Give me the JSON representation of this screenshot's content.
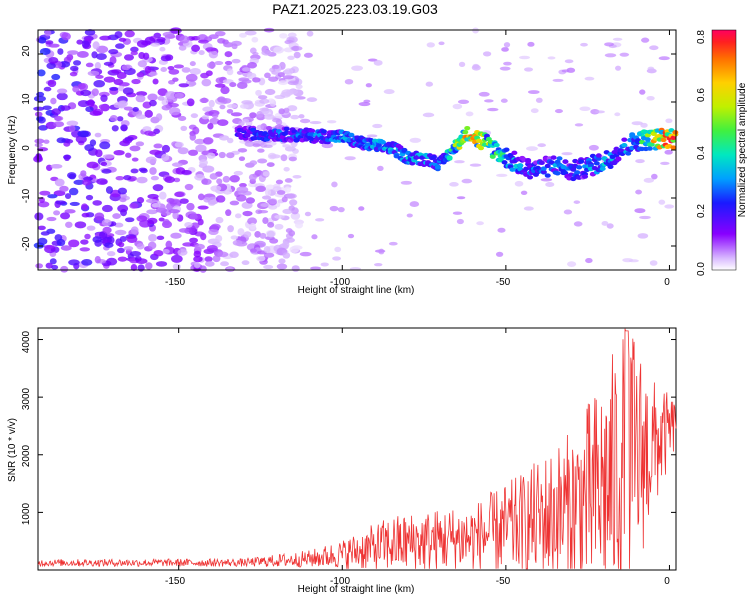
{
  "title": "PAZ1.2025.223.03.19.G03",
  "chart_data": [
    {
      "type": "heatmap",
      "xlabel": "Height of straight line (km)",
      "ylabel": "Frequency (Hz)",
      "xlim": [
        -193,
        2
      ],
      "ylim": [
        -25,
        25
      ],
      "x_ticks": [
        "-150",
        "-100",
        "-50",
        "0"
      ],
      "y_ticks": [
        "20",
        "10",
        "0",
        "-10",
        "-20"
      ],
      "colorbar": {
        "label": "Normalized spectral amplitude",
        "range": [
          0,
          0.83
        ],
        "ticks": [
          "0.0",
          "0.2",
          "0.4",
          "0.6",
          "0.8"
        ],
        "colormap": "rainbow"
      },
      "ridge": [
        {
          "x": -130,
          "y": 3.5,
          "value": 0.25
        },
        {
          "x": -120,
          "y": 3.3,
          "value": 0.3
        },
        {
          "x": -110,
          "y": 3.0,
          "value": 0.3
        },
        {
          "x": -100,
          "y": 2.8,
          "value": 0.35
        },
        {
          "x": -95,
          "y": 1.5,
          "value": 0.3
        },
        {
          "x": -90,
          "y": 0.8,
          "value": 0.4
        },
        {
          "x": -85,
          "y": 0.5,
          "value": 0.35
        },
        {
          "x": -80,
          "y": -1.5,
          "value": 0.4
        },
        {
          "x": -73,
          "y": -2.0,
          "value": 0.35
        },
        {
          "x": -70,
          "y": -3.0,
          "value": 0.3
        },
        {
          "x": -62,
          "y": 3.5,
          "value": 0.75
        },
        {
          "x": -55,
          "y": 1.0,
          "value": 0.55
        },
        {
          "x": -50,
          "y": -1.5,
          "value": 0.4
        },
        {
          "x": -45,
          "y": -3.5,
          "value": 0.35
        },
        {
          "x": -40,
          "y": -4.0,
          "value": 0.3
        },
        {
          "x": -35,
          "y": -3.0,
          "value": 0.35
        },
        {
          "x": -30,
          "y": -4.5,
          "value": 0.3
        },
        {
          "x": -20,
          "y": -2.5,
          "value": 0.4
        },
        {
          "x": -15,
          "y": 0.0,
          "value": 0.35
        },
        {
          "x": -10,
          "y": 2.0,
          "value": 0.4
        },
        {
          "x": -5,
          "y": 2.2,
          "value": 0.7
        },
        {
          "x": 0,
          "y": 2.5,
          "value": 0.83
        }
      ]
    },
    {
      "type": "line",
      "xlabel": "Height of straight line (km)",
      "ylabel": "SNR (10 * v/v)",
      "xlim": [
        -193,
        2
      ],
      "ylim": [
        0,
        4200
      ],
      "x_ticks": [
        "-150",
        "-100",
        "-50",
        "0"
      ],
      "y_ticks": [
        "1000",
        "2000",
        "3000",
        "4000"
      ],
      "color": "#ee3333",
      "envelope": [
        {
          "x": -193,
          "mean": 120,
          "amp": 60
        },
        {
          "x": -130,
          "mean": 120,
          "amp": 70
        },
        {
          "x": -110,
          "mean": 180,
          "amp": 150
        },
        {
          "x": -100,
          "mean": 250,
          "amp": 250
        },
        {
          "x": -85,
          "mean": 400,
          "amp": 500
        },
        {
          "x": -60,
          "mean": 500,
          "amp": 600
        },
        {
          "x": -45,
          "mean": 700,
          "amp": 900
        },
        {
          "x": -30,
          "mean": 900,
          "amp": 1400
        },
        {
          "x": -20,
          "mean": 1200,
          "amp": 2000
        },
        {
          "x": -13,
          "mean": 1600,
          "amp": 2600
        },
        {
          "x": -5,
          "mean": 2000,
          "amp": 1200
        },
        {
          "x": 2,
          "mean": 2500,
          "amp": 400
        }
      ]
    }
  ]
}
